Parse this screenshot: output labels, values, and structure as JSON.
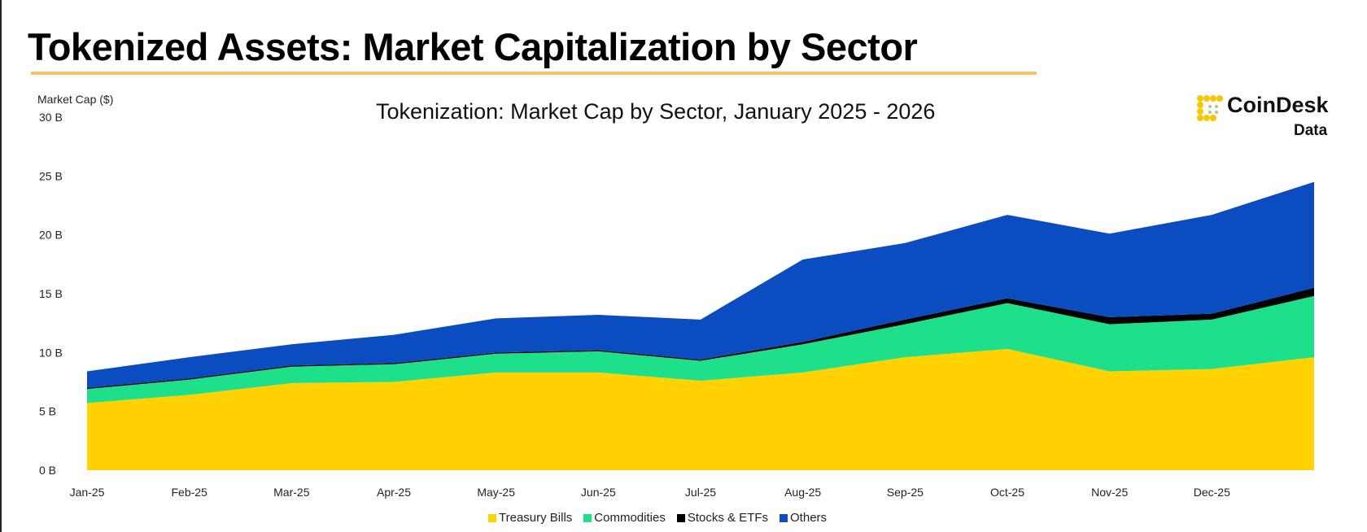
{
  "title": "Tokenized Assets: Market Capitalization by Sector",
  "logo": {
    "word": "CoinDesk",
    "sub": "Data"
  },
  "chart_data": {
    "type": "area",
    "stacked": true,
    "title": "Tokenization: Market Cap by Sector, January 2025 - 2026",
    "ylabel": "Market Cap ($)",
    "xlabel": "",
    "ylim": [
      0,
      30
    ],
    "yticks": [
      "0 B",
      "5 B",
      "10 B",
      "15 B",
      "20 B",
      "25 B",
      "30 B"
    ],
    "ytick_values": [
      0,
      5,
      10,
      15,
      20,
      25,
      30
    ],
    "categories": [
      "Jan-25",
      "Feb-25",
      "Mar-25",
      "Apr-25",
      "May-25",
      "Jun-25",
      "Jul-25",
      "Aug-25",
      "Sep-25",
      "Oct-25",
      "Nov-25",
      "Dec-25",
      ""
    ],
    "units": "billions USD",
    "legend_position": "bottom",
    "series": [
      {
        "name": "Treasury Bills",
        "color": "#FFD200",
        "values": [
          5.7,
          6.4,
          7.4,
          7.5,
          8.3,
          8.3,
          7.6,
          8.3,
          9.6,
          10.3,
          8.4,
          8.6,
          9.6
        ]
      },
      {
        "name": "Commodities",
        "color": "#1FE08A",
        "values": [
          1.2,
          1.3,
          1.4,
          1.5,
          1.6,
          1.8,
          1.7,
          2.4,
          2.8,
          3.9,
          4.0,
          4.2,
          5.2
        ]
      },
      {
        "name": "Stocks & ETFs",
        "color": "#000000",
        "values": [
          0.1,
          0.1,
          0.1,
          0.1,
          0.1,
          0.1,
          0.1,
          0.2,
          0.4,
          0.4,
          0.6,
          0.5,
          0.7
        ]
      },
      {
        "name": "Others",
        "color": "#0B4CC0",
        "values": [
          1.4,
          1.8,
          1.8,
          2.4,
          2.9,
          3.0,
          3.4,
          7.0,
          6.5,
          7.1,
          7.1,
          8.4,
          9.0
        ]
      }
    ]
  }
}
